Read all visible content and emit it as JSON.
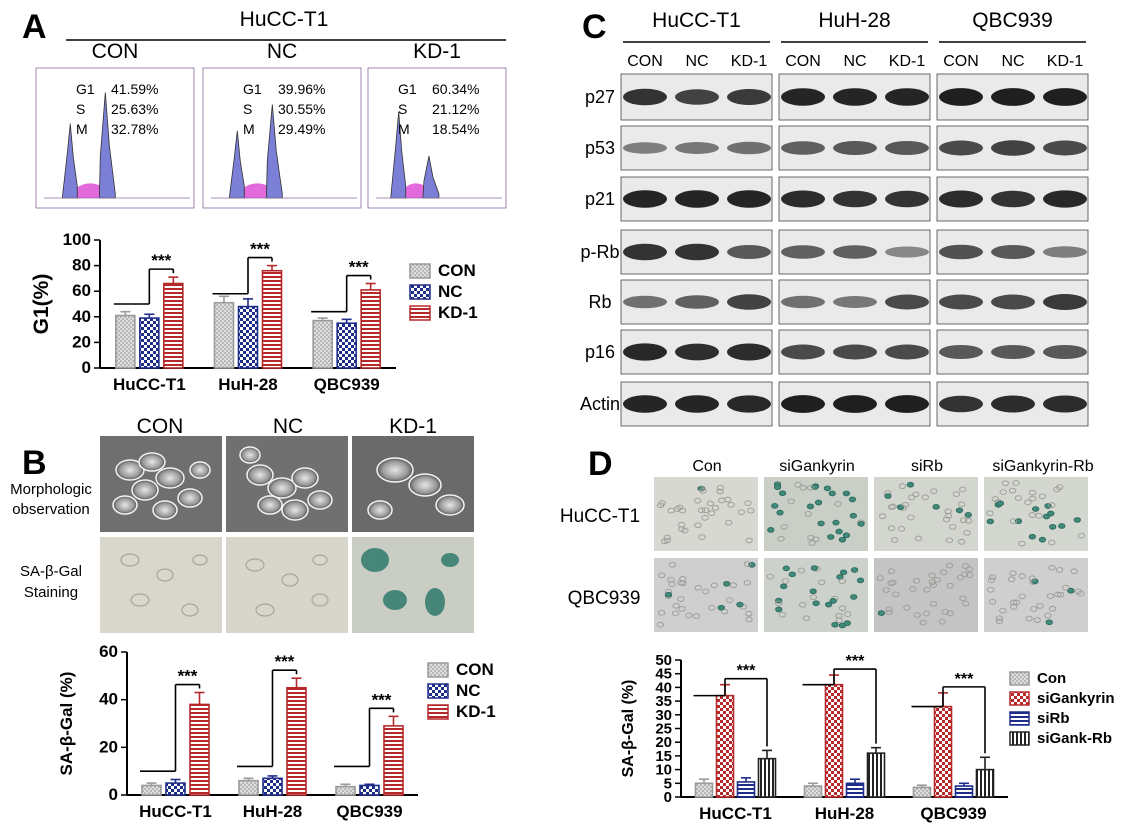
{
  "panels": {
    "A": {
      "letter": "A",
      "group_title": "HuCC-T1",
      "histograms": [
        {
          "label": "CON",
          "stats": [
            {
              "phase": "G1",
              "value": "41.59%"
            },
            {
              "phase": "S",
              "value": "25.63%"
            },
            {
              "phase": "M",
              "value": "32.78%"
            }
          ]
        },
        {
          "label": "NC",
          "stats": [
            {
              "phase": "G1",
              "value": "39.96%"
            },
            {
              "phase": "S",
              "value": "30.55%"
            },
            {
              "phase": "M",
              "value": "29.49%"
            }
          ]
        },
        {
          "label": "KD-1",
          "stats": [
            {
              "phase": "G1",
              "value": "60.34%"
            },
            {
              "phase": "S",
              "value": "21.12%"
            },
            {
              "phase": "M",
              "value": "18.54%"
            }
          ]
        }
      ]
    },
    "B": {
      "letter": "B",
      "columns": [
        "CON",
        "NC",
        "KD-1"
      ],
      "row_labels": [
        [
          "Morphologic",
          "observation"
        ],
        [
          "SA-β-Gal",
          "Staining"
        ]
      ]
    },
    "C": {
      "letter": "C",
      "cell_lines": [
        "HuCC-T1",
        "HuH-28",
        "QBC939"
      ],
      "lanes": [
        "CON",
        "NC",
        "KD-1"
      ],
      "proteins": [
        "p27",
        "p53",
        "p21",
        "p-Rb",
        "Rb",
        "p16",
        "Actin"
      ]
    },
    "D": {
      "letter": "D",
      "columns": [
        "Con",
        "siGankyrin",
        "siRb",
        "siGankyrin-Rb"
      ],
      "rows": [
        "HuCC-T1",
        "QBC939"
      ]
    }
  },
  "chart_data": [
    {
      "id": "A",
      "type": "bar",
      "categories": [
        "HuCC-T1",
        "HuH-28",
        "QBC939"
      ],
      "ylabel": "G1(%)",
      "ylim": [
        0,
        100
      ],
      "yticks": [
        0,
        20,
        40,
        60,
        80,
        100
      ],
      "series": [
        {
          "name": "CON",
          "values": [
            41,
            51,
            37
          ],
          "errors": [
            3,
            5,
            2
          ],
          "color": "#aaaaaa"
        },
        {
          "name": "NC",
          "values": [
            39,
            48,
            35
          ],
          "errors": [
            3,
            6,
            3
          ],
          "color": "#1f2d8a"
        },
        {
          "name": "KD-1",
          "values": [
            66,
            76,
            61
          ],
          "errors": [
            5,
            4,
            5
          ],
          "color": "#b5292a"
        }
      ],
      "significance": "***",
      "legend": "right"
    },
    {
      "id": "B",
      "type": "bar",
      "categories": [
        "HuCC-T1",
        "HuH-28",
        "QBC939"
      ],
      "ylabel": "SA-β-Gal (%)",
      "ylim": [
        0,
        60
      ],
      "yticks": [
        0,
        20,
        40,
        60
      ],
      "series": [
        {
          "name": "CON",
          "values": [
            4,
            6,
            3.5
          ],
          "errors": [
            1,
            1,
            1
          ],
          "color": "#aaaaaa"
        },
        {
          "name": "NC",
          "values": [
            5,
            7,
            4
          ],
          "errors": [
            1.5,
            1,
            0.5
          ],
          "color": "#1f2d8a"
        },
        {
          "name": "KD-1",
          "values": [
            38,
            45,
            29
          ],
          "errors": [
            5,
            4,
            4
          ],
          "color": "#b5292a"
        }
      ],
      "significance": "***",
      "legend": "right"
    },
    {
      "id": "D",
      "type": "bar",
      "categories": [
        "HuCC-T1",
        "HuH-28",
        "QBC939"
      ],
      "ylabel": "SA-β-Gal (%)",
      "ylim": [
        0,
        50
      ],
      "yticks": [
        0,
        5,
        10,
        15,
        20,
        25,
        30,
        35,
        40,
        45,
        50
      ],
      "series": [
        {
          "name": "Con",
          "values": [
            5,
            4,
            3.5
          ],
          "errors": [
            1.5,
            1,
            0.8
          ],
          "color": "#aaaaaa"
        },
        {
          "name": "siGankyrin",
          "values": [
            37,
            41,
            33
          ],
          "errors": [
            4,
            3.5,
            5
          ],
          "color": "#b5292a"
        },
        {
          "name": "siRb",
          "values": [
            5.5,
            5,
            4
          ],
          "errors": [
            1.5,
            1.5,
            1
          ],
          "color": "#1f2d8a"
        },
        {
          "name": "siGank-Rb",
          "values": [
            14,
            16,
            10
          ],
          "errors": [
            3,
            2,
            4.5
          ],
          "color": "#222222"
        }
      ],
      "significance": "***",
      "legend": "right"
    }
  ]
}
